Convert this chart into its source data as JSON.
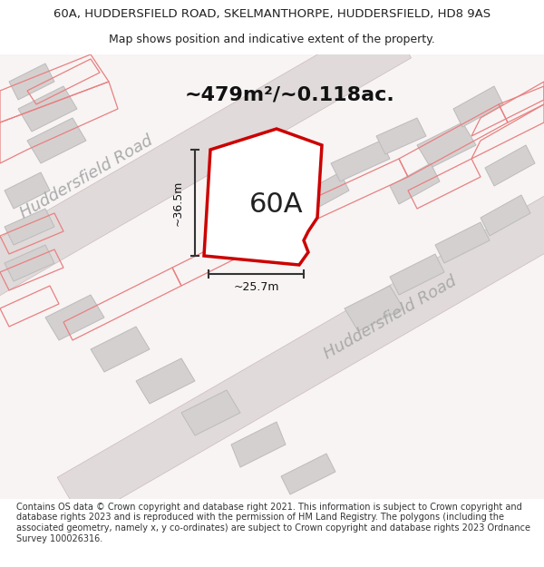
{
  "title_line1": "60A, HUDDERSFIELD ROAD, SKELMANTHORPE, HUDDERSFIELD, HD8 9AS",
  "title_line2": "Map shows position and indicative extent of the property.",
  "area_text": "~479m²/~0.118ac.",
  "label_60A": "60A",
  "dim_vertical": "~36.5m",
  "dim_horizontal": "~25.7m",
  "road_label1": "Huddersfield Road",
  "road_label2": "Huddersfield Road",
  "footer_text": "Contains OS data © Crown copyright and database right 2021. This information is subject to Crown copyright and database rights 2023 and is reproduced with the permission of HM Land Registry. The polygons (including the associated geometry, namely x, y co-ordinates) are subject to Crown copyright and database rights 2023 Ordnance Survey 100026316.",
  "bg_color": "#ffffff",
  "map_bg": "#f5f0f0",
  "road_fill": "#e8e8e8",
  "road_stroke": "#cccccc",
  "building_fill": "#d8d8d8",
  "building_stroke": "#aaaaaa",
  "pink_line_color": "#e88080",
  "red_plot_color": "#cc0000",
  "dim_line_color": "#333333",
  "text_color": "#222222",
  "road_text_color": "#999999",
  "title_fontsize": 9.5,
  "footer_fontsize": 7.0
}
